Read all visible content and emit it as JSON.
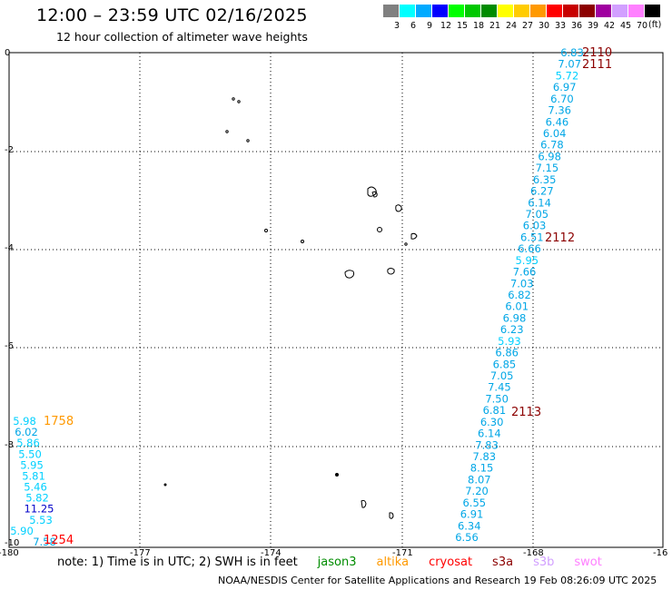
{
  "header": {
    "title": "12:00 – 23:59 UTC 02/16/2025",
    "subtitle": "12 hour collection of altimeter wave heights"
  },
  "colorbar": {
    "unit_label": "(ft)",
    "swatches": [
      {
        "color": "#808080",
        "label": "3"
      },
      {
        "color": "#00ffff",
        "label": "6"
      },
      {
        "color": "#00aaff",
        "label": "9"
      },
      {
        "color": "#0000ff",
        "label": "12"
      },
      {
        "color": "#00ff00",
        "label": "15"
      },
      {
        "color": "#00c800",
        "label": "18"
      },
      {
        "color": "#008c00",
        "label": "21"
      },
      {
        "color": "#ffff00",
        "label": "24"
      },
      {
        "color": "#ffcc00",
        "label": "27"
      },
      {
        "color": "#ff9900",
        "label": "30"
      },
      {
        "color": "#ff0000",
        "label": "33"
      },
      {
        "color": "#c80000",
        "label": "36"
      },
      {
        "color": "#8c0000",
        "label": "39"
      },
      {
        "color": "#a000a0",
        "label": "42"
      },
      {
        "color": "#d2a0ff",
        "label": "45"
      },
      {
        "color": "#ff80ff",
        "label": "70"
      },
      {
        "color": "#000000",
        "label": ""
      }
    ]
  },
  "map": {
    "lon_labels": [
      "-180",
      "-177",
      "-174",
      "-171",
      "-168",
      "-16"
    ],
    "lat_labels": [
      "0",
      "-2",
      "-4",
      "-6",
      "-8",
      "-10"
    ],
    "pass_times": [
      {
        "text": "2110",
        "color": "#8c0000"
      },
      {
        "text": "2111",
        "color": "#8c0000"
      },
      {
        "text": "2112",
        "color": "#8c0000"
      },
      {
        "text": "2113",
        "color": "#8c0000"
      },
      {
        "text": "1758",
        "color": "#ff9900"
      },
      {
        "text": "1254",
        "color": "#ff0000"
      }
    ],
    "track_right": [
      "6.83",
      "7.07",
      "5.72",
      "6.97",
      "6.70",
      "7.36",
      "6.46",
      "6.04",
      "6.78",
      "6.98",
      "7.15",
      "6.35",
      "6.27",
      "6.14",
      "7.05",
      "6.03",
      "6.51",
      "6.66",
      "5.95",
      "7.66",
      "7.03",
      "6.82",
      "6.01",
      "6.98",
      "6.23",
      "5.93",
      "6.86",
      "6.85",
      "7.05",
      "7.45",
      "7.50",
      "6.81",
      "6.30",
      "6.14",
      "7.83",
      "7.83",
      "8.15",
      "8.07",
      "7.20",
      "6.55",
      "6.91",
      "6.34",
      "6.56"
    ],
    "track_left": [
      "5.98",
      "6.02",
      "5.86",
      "5.50",
      "5.95",
      "5.81",
      "5.46",
      "5.82",
      "11.25",
      "5.53",
      "5.90",
      "7.58"
    ]
  },
  "legend": {
    "note": "note:  1) Time is in UTC; 2) SWH is in feet",
    "satellites": [
      {
        "name": "jason3",
        "color": "#008c00"
      },
      {
        "name": "altika",
        "color": "#ff9900"
      },
      {
        "name": "cryosat",
        "color": "#ff0000"
      },
      {
        "name": "s3a",
        "color": "#8c0000"
      },
      {
        "name": "s3b",
        "color": "#d2a0ff"
      },
      {
        "name": "swot",
        "color": "#ff80ff"
      }
    ]
  },
  "credit": "NOAA/NESDIS Center for Satellite Applications and Research    19 Feb 08:26:09 UTC 2025"
}
